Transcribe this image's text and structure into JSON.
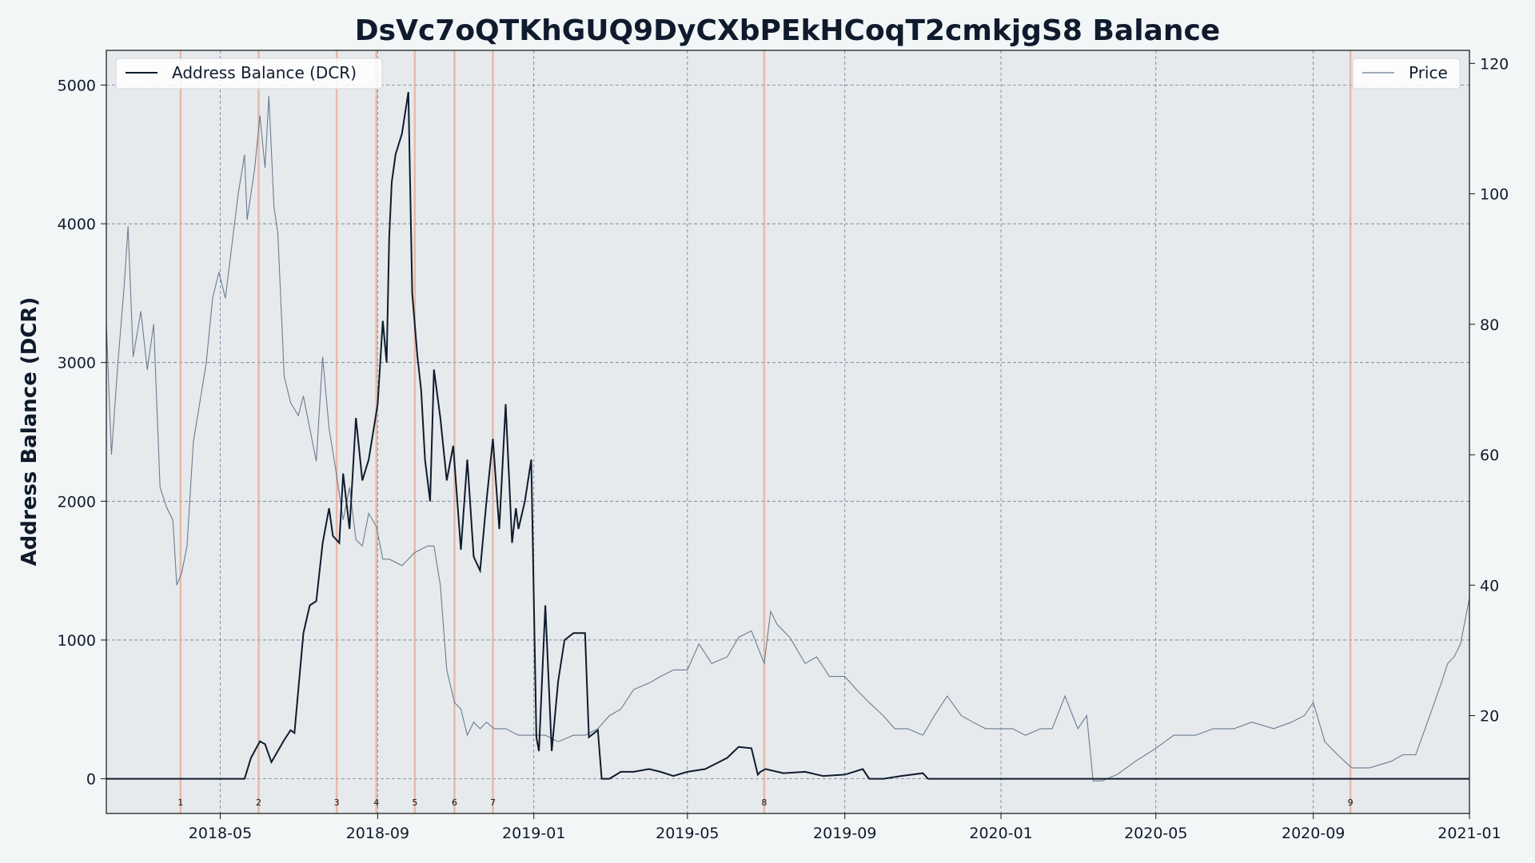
{
  "chart_data": {
    "type": "line",
    "title": "DsVc7oQTKhGUQ9DyCXbPEkHCoqT2cmkjgS8 Balance",
    "ylabel": "Address Balance (DCR)",
    "y2label": "",
    "xlim": [
      "2018-02-01",
      "2021-01-01"
    ],
    "ylim": [
      -250,
      5250
    ],
    "y2lim": [
      5,
      122
    ],
    "x_ticks": [
      "2018-05",
      "2018-09",
      "2019-01",
      "2019-05",
      "2019-09",
      "2020-01",
      "2020-05",
      "2020-09",
      "2021-01"
    ],
    "y_ticks": [
      0,
      1000,
      2000,
      3000,
      4000,
      5000
    ],
    "y2_ticks": [
      20,
      40,
      60,
      80,
      100,
      120
    ],
    "grid": true,
    "legend": [
      {
        "label": "Address Balance (DCR)",
        "placement": "top-left"
      },
      {
        "label": "Price",
        "placement": "top-right"
      }
    ],
    "colors": {
      "balance": "#0f1b2d",
      "price": "#6b7c90",
      "events": "#e8a890",
      "plot_bg": "#e6eaed",
      "page_bg": "#f3f6f7",
      "grid": "#3a4a70"
    },
    "events": [
      {
        "label": "1",
        "date": "2018-03-31"
      },
      {
        "label": "2",
        "date": "2018-05-31"
      },
      {
        "label": "3",
        "date": "2018-07-31"
      },
      {
        "label": "4",
        "date": "2018-08-31"
      },
      {
        "label": "5",
        "date": "2018-09-30"
      },
      {
        "label": "6",
        "date": "2018-10-31"
      },
      {
        "label": "7",
        "date": "2018-11-30"
      },
      {
        "label": "8",
        "date": "2019-06-30"
      },
      {
        "label": "9",
        "date": "2020-09-30"
      }
    ],
    "series": [
      {
        "name": "Address Balance (DCR)",
        "axis": "left",
        "x": [
          "2018-02-01",
          "2018-05-10",
          "2018-05-20",
          "2018-05-25",
          "2018-06-01",
          "2018-06-05",
          "2018-06-10",
          "2018-06-20",
          "2018-06-25",
          "2018-06-28",
          "2018-07-05",
          "2018-07-10",
          "2018-07-15",
          "2018-07-20",
          "2018-07-25",
          "2018-07-28",
          "2018-08-02",
          "2018-08-05",
          "2018-08-10",
          "2018-08-15",
          "2018-08-20",
          "2018-08-25",
          "2018-09-01",
          "2018-09-05",
          "2018-09-08",
          "2018-09-10",
          "2018-09-12",
          "2018-09-15",
          "2018-09-20",
          "2018-09-25",
          "2018-09-28",
          "2018-10-02",
          "2018-10-05",
          "2018-10-08",
          "2018-10-12",
          "2018-10-15",
          "2018-10-20",
          "2018-10-25",
          "2018-10-30",
          "2018-11-05",
          "2018-11-10",
          "2018-11-15",
          "2018-11-20",
          "2018-11-25",
          "2018-11-30",
          "2018-12-05",
          "2018-12-10",
          "2018-12-15",
          "2018-12-18",
          "2018-12-20",
          "2018-12-25",
          "2018-12-30",
          "2019-01-03",
          "2019-01-05",
          "2019-01-10",
          "2019-01-15",
          "2019-01-20",
          "2019-01-25",
          "2019-02-01",
          "2019-02-10",
          "2019-02-13",
          "2019-02-20",
          "2019-02-23",
          "2019-03-01",
          "2019-03-10",
          "2019-03-20",
          "2019-04-01",
          "2019-04-10",
          "2019-04-20",
          "2019-05-01",
          "2019-05-15",
          "2019-06-01",
          "2019-06-10",
          "2019-06-20",
          "2019-06-25",
          "2019-06-27",
          "2019-07-01",
          "2019-07-15",
          "2019-08-01",
          "2019-08-15",
          "2019-09-01",
          "2019-09-15",
          "2019-09-20",
          "2019-10-01",
          "2019-10-15",
          "2019-11-01",
          "2019-11-05",
          "2021-01-01"
        ],
        "values": [
          0,
          0,
          0,
          150,
          270,
          250,
          120,
          280,
          350,
          330,
          1050,
          1250,
          1280,
          1700,
          1950,
          1750,
          1700,
          2200,
          1800,
          2600,
          2150,
          2300,
          2700,
          3300,
          3000,
          3900,
          4300,
          4500,
          4650,
          4950,
          3500,
          3050,
          2800,
          2300,
          2000,
          2950,
          2600,
          2150,
          2400,
          1650,
          2300,
          1600,
          1500,
          2000,
          2450,
          1800,
          2700,
          1700,
          1950,
          1800,
          2000,
          2300,
          300,
          200,
          1250,
          200,
          700,
          1000,
          1050,
          1050,
          300,
          350,
          0,
          0,
          50,
          50,
          70,
          50,
          20,
          50,
          70,
          150,
          230,
          220,
          30,
          50,
          70,
          40,
          50,
          20,
          30,
          70,
          0,
          0,
          20,
          40,
          0,
          0
        ]
      },
      {
        "name": "Price",
        "axis": "right",
        "x": [
          "2018-02-01",
          "2018-02-05",
          "2018-02-10",
          "2018-02-15",
          "2018-02-18",
          "2018-02-22",
          "2018-02-28",
          "2018-03-05",
          "2018-03-10",
          "2018-03-15",
          "2018-03-20",
          "2018-03-25",
          "2018-03-28",
          "2018-04-01",
          "2018-04-05",
          "2018-04-10",
          "2018-04-15",
          "2018-04-20",
          "2018-04-25",
          "2018-04-30",
          "2018-05-05",
          "2018-05-10",
          "2018-05-15",
          "2018-05-20",
          "2018-05-22",
          "2018-05-28",
          "2018-06-01",
          "2018-06-05",
          "2018-06-08",
          "2018-06-12",
          "2018-06-15",
          "2018-06-20",
          "2018-06-25",
          "2018-07-01",
          "2018-07-05",
          "2018-07-10",
          "2018-07-15",
          "2018-07-20",
          "2018-07-25",
          "2018-07-30",
          "2018-08-05",
          "2018-08-10",
          "2018-08-15",
          "2018-08-20",
          "2018-08-25",
          "2018-08-31",
          "2018-09-05",
          "2018-09-10",
          "2018-09-20",
          "2018-09-30",
          "2018-10-10",
          "2018-10-15",
          "2018-10-20",
          "2018-10-25",
          "2018-10-31",
          "2018-11-05",
          "2018-11-10",
          "2018-11-15",
          "2018-11-20",
          "2018-11-25",
          "2018-12-01",
          "2018-12-10",
          "2018-12-20",
          "2019-01-01",
          "2019-01-10",
          "2019-01-20",
          "2019-02-01",
          "2019-02-10",
          "2019-02-20",
          "2019-03-01",
          "2019-03-10",
          "2019-03-20",
          "2019-04-01",
          "2019-04-10",
          "2019-04-20",
          "2019-05-01",
          "2019-05-10",
          "2019-05-20",
          "2019-06-01",
          "2019-06-10",
          "2019-06-20",
          "2019-06-30",
          "2019-07-05",
          "2019-07-10",
          "2019-07-20",
          "2019-08-01",
          "2019-08-10",
          "2019-08-20",
          "2019-09-01",
          "2019-09-10",
          "2019-09-20",
          "2019-10-01",
          "2019-10-10",
          "2019-10-20",
          "2019-11-01",
          "2019-11-10",
          "2019-11-20",
          "2019-12-01",
          "2019-12-10",
          "2019-12-20",
          "2020-01-01",
          "2020-01-10",
          "2020-01-20",
          "2020-02-01",
          "2020-02-10",
          "2020-02-20",
          "2020-03-01",
          "2020-03-08",
          "2020-03-13",
          "2020-03-20",
          "2020-04-01",
          "2020-04-15",
          "2020-05-01",
          "2020-05-15",
          "2020-06-01",
          "2020-06-15",
          "2020-07-01",
          "2020-07-15",
          "2020-08-01",
          "2020-08-15",
          "2020-08-25",
          "2020-09-01",
          "2020-09-10",
          "2020-09-20",
          "2020-10-01",
          "2020-10-15",
          "2020-11-01",
          "2020-11-10",
          "2020-11-20",
          "2020-12-01",
          "2020-12-10",
          "2020-12-15",
          "2020-12-20",
          "2020-12-25",
          "2021-01-01"
        ],
        "values": [
          80,
          60,
          74,
          86,
          95,
          75,
          82,
          73,
          80,
          55,
          52,
          50,
          40,
          42,
          46,
          62,
          68,
          74,
          84,
          88,
          84,
          92,
          100,
          106,
          96,
          104,
          112,
          104,
          115,
          98,
          94,
          72,
          68,
          66,
          69,
          64,
          59,
          75,
          64,
          58,
          50,
          55,
          47,
          46,
          51,
          49,
          44,
          44,
          43,
          45,
          46,
          46,
          40,
          27,
          22,
          21,
          17,
          19,
          18,
          19,
          18,
          18,
          17,
          17,
          17,
          16,
          17,
          17,
          18,
          20,
          21,
          24,
          25,
          26,
          27,
          27,
          31,
          28,
          29,
          32,
          33,
          28,
          36,
          34,
          32,
          28,
          29,
          26,
          26,
          24,
          22,
          20,
          18,
          18,
          17,
          20,
          23,
          20,
          19,
          18,
          18,
          18,
          17,
          18,
          18,
          23,
          18,
          20,
          10,
          10,
          11,
          13,
          15,
          17,
          17,
          18,
          18,
          19,
          18,
          19,
          20,
          22,
          16,
          14,
          12,
          12,
          13,
          14,
          14,
          20,
          25,
          28,
          29,
          31,
          38
        ]
      }
    ]
  }
}
